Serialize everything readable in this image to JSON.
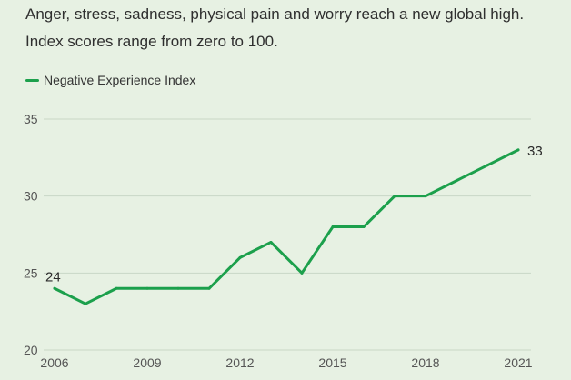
{
  "subtitle_lines": [
    "Anger, stress, sadness, physical pain and worry reach a new global high.",
    "Index scores range from zero to 100."
  ],
  "colors": {
    "background": "#e7f1e3",
    "line": "#1ca04c",
    "grid": "#c8d6c6"
  },
  "chart_data": {
    "type": "line",
    "title": "",
    "subtitle": "Anger, stress, sadness, physical pain and worry reach a new global high. Index scores range from zero to 100.",
    "xlabel": "",
    "ylabel": "",
    "ylim": [
      20,
      35
    ],
    "xlim": [
      2006,
      2021
    ],
    "yticks": [
      "20",
      "25",
      "30",
      "35"
    ],
    "xticks": [
      "2006",
      "2009",
      "2012",
      "2015",
      "2018",
      "2021"
    ],
    "legend": "top-left",
    "grid": true,
    "series": [
      {
        "name": "Negative Experience Index",
        "x": [
          2006,
          2007,
          2008,
          2009,
          2010,
          2011,
          2012,
          2013,
          2014,
          2015,
          2016,
          2017,
          2018,
          2019,
          2020,
          2021
        ],
        "values": [
          24,
          23,
          24,
          24,
          24,
          24,
          26,
          27,
          25,
          28,
          28,
          30,
          30,
          31,
          32,
          33
        ]
      }
    ],
    "data_labels": [
      {
        "x": 2006,
        "text": "24"
      },
      {
        "x": 2021,
        "text": "33"
      }
    ]
  }
}
